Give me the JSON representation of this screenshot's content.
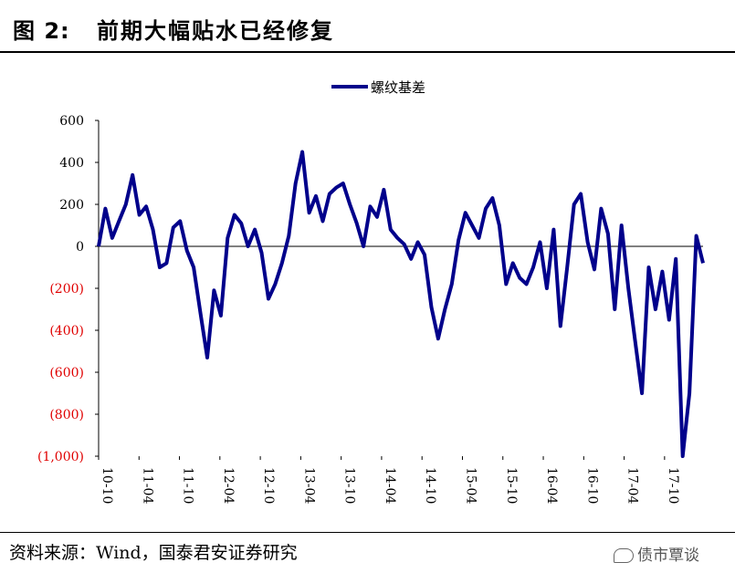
{
  "header": {
    "figure_label": "图 2:",
    "title": "前期大幅贴水已经修复"
  },
  "footer": {
    "source": "资料来源：Wind，国泰君安证券研究",
    "watermark": "债市覃谈"
  },
  "colors": {
    "series": "#00008B",
    "negative_tick": "#E00000",
    "axis": "#000000"
  },
  "chart_data": {
    "type": "line",
    "legend": {
      "position": "top-center",
      "entries": [
        "螺纹基差"
      ]
    },
    "ylim": [
      -1000,
      600
    ],
    "yticks": [
      600,
      400,
      200,
      0,
      -200,
      -400,
      -600,
      -800,
      -1000
    ],
    "ytick_labels": [
      "600",
      "400",
      "200",
      "0",
      "(200)",
      "(400)",
      "(600)",
      "(800)",
      "(1,000)"
    ],
    "xtick_labels": [
      "10-10",
      "11-04",
      "11-10",
      "12-04",
      "12-10",
      "13-04",
      "13-10",
      "14-04",
      "14-10",
      "15-04",
      "15-10",
      "16-04",
      "16-10",
      "17-04",
      "17-10"
    ],
    "series": [
      {
        "name": "螺纹基差",
        "x": [
          "2010-10",
          "2010-11",
          "2010-12",
          "2011-01",
          "2011-02",
          "2011-03",
          "2011-04",
          "2011-05",
          "2011-06",
          "2011-07",
          "2011-08",
          "2011-09",
          "2011-10",
          "2011-11",
          "2011-12",
          "2012-01",
          "2012-02",
          "2012-03",
          "2012-04",
          "2012-05",
          "2012-06",
          "2012-07",
          "2012-08",
          "2012-09",
          "2012-10",
          "2012-11",
          "2012-12",
          "2013-01",
          "2013-02",
          "2013-03",
          "2013-04",
          "2013-05",
          "2013-06",
          "2013-07",
          "2013-08",
          "2013-09",
          "2013-10",
          "2013-11",
          "2013-12",
          "2014-01",
          "2014-02",
          "2014-03",
          "2014-04",
          "2014-05",
          "2014-06",
          "2014-07",
          "2014-08",
          "2014-09",
          "2014-10",
          "2014-11",
          "2014-12",
          "2015-01",
          "2015-02",
          "2015-03",
          "2015-04",
          "2015-05",
          "2015-06",
          "2015-07",
          "2015-08",
          "2015-09",
          "2015-10",
          "2015-11",
          "2015-12",
          "2016-01",
          "2016-02",
          "2016-03",
          "2016-04",
          "2016-05",
          "2016-06",
          "2016-07",
          "2016-08",
          "2016-09",
          "2016-10",
          "2016-11",
          "2016-12",
          "2017-01",
          "2017-02",
          "2017-03",
          "2017-04",
          "2017-05",
          "2017-06",
          "2017-07",
          "2017-08",
          "2017-09",
          "2017-10",
          "2017-11",
          "2017-12",
          "2018-01",
          "2018-02",
          "2018-03"
        ],
        "values": [
          0,
          180,
          40,
          120,
          200,
          340,
          150,
          190,
          80,
          -100,
          -80,
          90,
          120,
          -20,
          -100,
          -320,
          -530,
          -210,
          -330,
          40,
          150,
          110,
          0,
          80,
          -30,
          -250,
          -180,
          -80,
          50,
          300,
          450,
          160,
          240,
          120,
          250,
          280,
          300,
          200,
          110,
          0,
          190,
          140,
          270,
          80,
          40,
          10,
          -60,
          20,
          -40,
          -290,
          -440,
          -300,
          -180,
          30,
          160,
          100,
          40,
          180,
          230,
          100,
          -180,
          -80,
          -150,
          -180,
          -100,
          20,
          -200,
          80,
          -380,
          -100,
          200,
          250,
          20,
          -110,
          180,
          60,
          -300,
          100,
          -200,
          -450,
          -700,
          -100,
          -300,
          -120,
          -350,
          -60,
          -1000,
          -700,
          50,
          -80
        ]
      }
    ]
  }
}
